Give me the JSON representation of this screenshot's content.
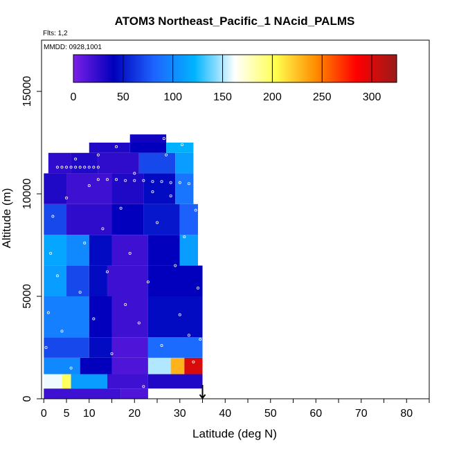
{
  "chart_data": {
    "type": "heatmap",
    "title": "ATOM3 Northeast_Pacific_1 NAcid_PALMS",
    "flights_label": "Flts: 1,2",
    "date_label": "MMDD: 0928,1001",
    "xlabel": "Latitude (deg N)",
    "ylabel": "Altitude (m)",
    "xlim": [
      -0.5,
      85
    ],
    "ylim": [
      0,
      17500
    ],
    "x_ticks": [
      0,
      5,
      10,
      20,
      30,
      40,
      50,
      60,
      70,
      80
    ],
    "y_ticks": [
      0,
      5000,
      10000,
      15000
    ],
    "colorbar": {
      "range": [
        0,
        325
      ],
      "ticks": [
        0,
        50,
        100,
        150,
        200,
        250,
        300
      ],
      "colors": [
        "#7b1fe8",
        "#0000bb",
        "#1e64ff",
        "#00b4ff",
        "#ffffff",
        "#ffff50",
        "#ff8c00",
        "#ff0000",
        "#9b1a1a"
      ]
    },
    "arrow_marker_lat": 35,
    "cells": [
      [
        0,
        17,
        0,
        500,
        20
      ],
      [
        17,
        23,
        0,
        500,
        15
      ],
      [
        0,
        4,
        500,
        1200,
        160
      ],
      [
        4,
        6,
        500,
        1200,
        200
      ],
      [
        6,
        14,
        500,
        1200,
        110
      ],
      [
        14,
        23,
        500,
        1200,
        20
      ],
      [
        23,
        35,
        500,
        1200,
        30
      ],
      [
        0,
        8,
        1200,
        2000,
        100
      ],
      [
        8,
        15,
        1200,
        2000,
        40
      ],
      [
        15,
        23,
        1200,
        2000,
        15
      ],
      [
        23,
        28,
        1200,
        2000,
        150
      ],
      [
        28,
        31,
        1200,
        2000,
        230
      ],
      [
        31,
        35,
        1200,
        2000,
        300
      ],
      [
        0,
        10,
        2000,
        3000,
        70
      ],
      [
        10,
        15,
        2000,
        3000,
        45
      ],
      [
        15,
        23,
        2000,
        3000,
        15
      ],
      [
        23,
        35,
        2000,
        3000,
        85
      ],
      [
        0,
        10,
        3000,
        5000,
        95
      ],
      [
        10,
        15,
        3000,
        5000,
        40
      ],
      [
        15,
        23,
        3000,
        5000,
        20
      ],
      [
        23,
        35,
        3000,
        5000,
        45
      ],
      [
        0,
        5,
        5000,
        6500,
        110
      ],
      [
        5,
        10,
        5000,
        6500,
        70
      ],
      [
        10,
        14,
        5000,
        6500,
        45
      ],
      [
        14,
        23,
        5000,
        6500,
        20
      ],
      [
        23,
        35,
        5000,
        6500,
        40
      ],
      [
        0,
        5,
        6500,
        8000,
        115
      ],
      [
        5,
        10,
        6500,
        8000,
        100
      ],
      [
        10,
        15,
        6500,
        8000,
        45
      ],
      [
        15,
        23,
        6500,
        8000,
        20
      ],
      [
        23,
        30,
        6500,
        8000,
        40
      ],
      [
        30,
        34,
        6500,
        8000,
        110
      ],
      [
        0,
        5,
        8000,
        9500,
        70
      ],
      [
        5,
        15,
        8000,
        9500,
        25
      ],
      [
        15,
        22,
        8000,
        9500,
        40
      ],
      [
        22,
        30,
        8000,
        9500,
        50
      ],
      [
        30,
        34,
        8000,
        9500,
        80
      ],
      [
        0,
        5,
        9500,
        11000,
        30
      ],
      [
        5,
        15,
        9500,
        11000,
        20
      ],
      [
        15,
        22,
        9500,
        11000,
        30
      ],
      [
        22,
        29,
        9500,
        11000,
        45
      ],
      [
        29,
        33,
        9500,
        11000,
        90
      ],
      [
        1,
        6,
        11000,
        12000,
        25
      ],
      [
        6,
        12,
        11000,
        12000,
        30
      ],
      [
        12,
        21,
        11000,
        12000,
        25
      ],
      [
        21,
        29,
        11000,
        12000,
        70
      ],
      [
        29,
        33,
        11000,
        12000,
        110
      ],
      [
        10,
        19,
        12000,
        12500,
        30
      ],
      [
        19,
        27,
        12000,
        12500,
        40
      ],
      [
        27,
        33,
        12000,
        12500,
        120
      ],
      [
        19,
        27,
        12500,
        12900,
        35
      ]
    ],
    "points": [
      [
        0.5,
        2500
      ],
      [
        1,
        4200
      ],
      [
        1.5,
        7100
      ],
      [
        2,
        8900
      ],
      [
        3,
        6000
      ],
      [
        4,
        3300
      ],
      [
        5,
        9800
      ],
      [
        6,
        1500
      ],
      [
        7,
        11700
      ],
      [
        8,
        5200
      ],
      [
        9,
        7600
      ],
      [
        10,
        10400
      ],
      [
        11,
        3900
      ],
      [
        12,
        11900
      ],
      [
        13,
        8300
      ],
      [
        14,
        6200
      ],
      [
        15,
        2200
      ],
      [
        16,
        12300
      ],
      [
        17,
        9300
      ],
      [
        18,
        4600
      ],
      [
        19,
        7100
      ],
      [
        20,
        11000
      ],
      [
        21,
        3700
      ],
      [
        22,
        600
      ],
      [
        23,
        5700
      ],
      [
        24,
        10100
      ],
      [
        25,
        8600
      ],
      [
        26,
        2600
      ],
      [
        27,
        11900
      ],
      [
        28,
        9900
      ],
      [
        29,
        6500
      ],
      [
        30,
        4100
      ],
      [
        31,
        7900
      ],
      [
        32,
        3100
      ],
      [
        33,
        1800
      ],
      [
        34,
        5400
      ],
      [
        34.5,
        2900
      ],
      [
        33.5,
        9200
      ],
      [
        30.5,
        12400
      ],
      [
        26.5,
        12700
      ],
      [
        3,
        11300
      ],
      [
        4,
        11300
      ],
      [
        5,
        11300
      ],
      [
        6,
        11300
      ],
      [
        7,
        11300
      ],
      [
        8,
        11300
      ],
      [
        9,
        11300
      ],
      [
        10,
        11300
      ],
      [
        11,
        11300
      ],
      [
        12,
        11300
      ],
      [
        12,
        10700
      ],
      [
        14,
        10700
      ],
      [
        16,
        10700
      ],
      [
        18,
        10650
      ],
      [
        20,
        10650
      ],
      [
        22,
        10650
      ],
      [
        24,
        10600
      ],
      [
        26,
        10600
      ],
      [
        28,
        10550
      ],
      [
        30,
        10550
      ],
      [
        32,
        10500
      ]
    ]
  }
}
